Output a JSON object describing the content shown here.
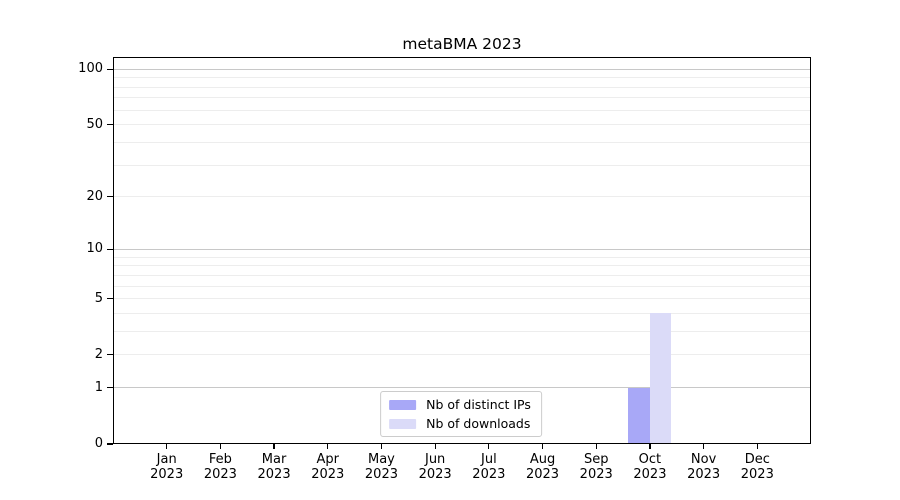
{
  "chart_data": {
    "type": "bar",
    "title": "metaBMA 2023",
    "categories": [
      "Jan",
      "Feb",
      "Mar",
      "Apr",
      "May",
      "Jun",
      "Jul",
      "Aug",
      "Sep",
      "Oct",
      "Nov",
      "Dec"
    ],
    "year_label": "2023",
    "series": [
      {
        "name": "Nb of distinct IPs",
        "color": "#a8a8f7",
        "values": [
          0,
          0,
          0,
          0,
          0,
          0,
          0,
          0,
          0,
          1,
          0,
          0
        ]
      },
      {
        "name": "Nb of downloads",
        "color": "#dbdbf8",
        "values": [
          0,
          0,
          0,
          0,
          0,
          0,
          0,
          0,
          0,
          4,
          0,
          0
        ]
      }
    ],
    "xlabel": "",
    "ylabel": "",
    "yscale": "log1p",
    "ylim": [
      0,
      115
    ],
    "y_tick_labels": [
      0,
      1,
      2,
      5,
      10,
      20,
      50,
      100
    ],
    "y_major_gridlines": [
      1,
      10,
      100
    ],
    "y_minor_gridlines": [
      2,
      3,
      4,
      5,
      6,
      7,
      8,
      9,
      20,
      30,
      40,
      50,
      60,
      70,
      80,
      90
    ],
    "grid": "horizontal",
    "legend": {
      "position": "lower center",
      "entries": [
        "Nb of distinct IPs",
        "Nb of downloads"
      ]
    },
    "colors": {
      "major_grid": "#c8c8c8",
      "minor_grid": "#ededed",
      "axis": "#000000",
      "text": "#000000",
      "background": "#ffffff",
      "legend_border": "#cccccc"
    }
  }
}
